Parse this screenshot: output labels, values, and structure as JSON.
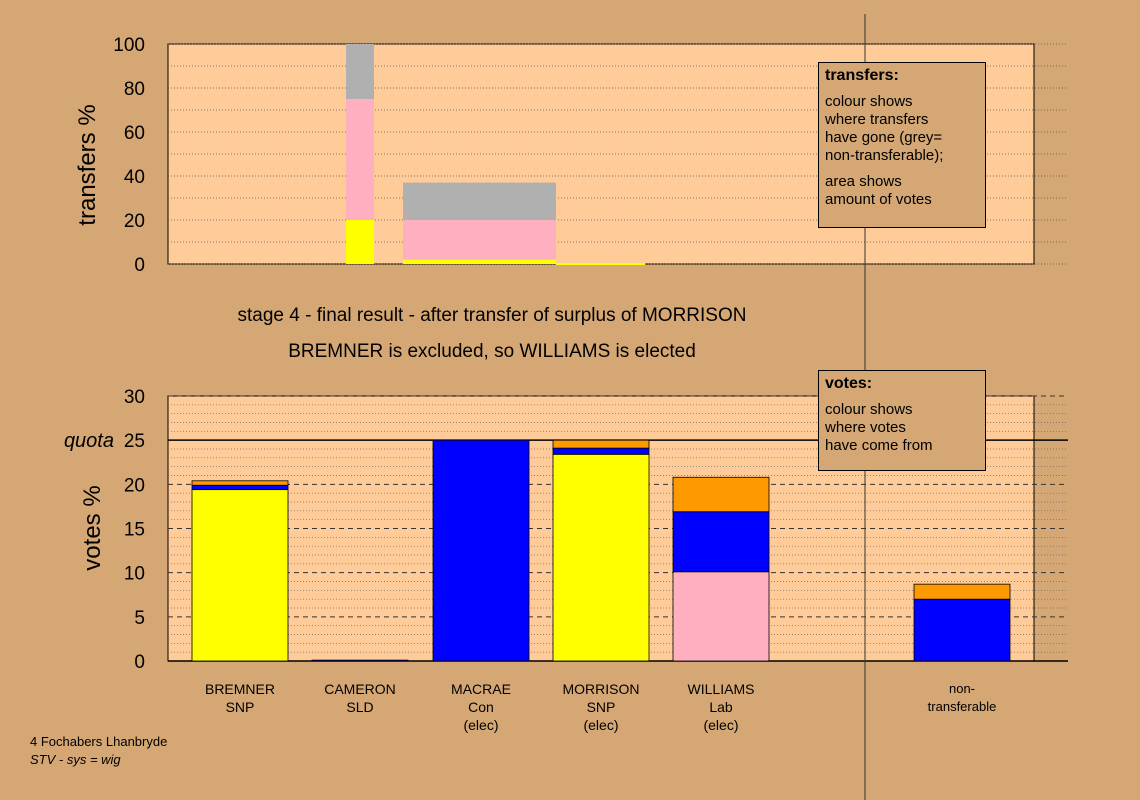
{
  "mid_title": {
    "line1": "stage 4 - final result - after transfer of surplus of MORRISON",
    "line2": "BREMNER is excluded, so WILLIAMS is elected"
  },
  "legend_transfers": {
    "heading": "transfers:",
    "lines": [
      "colour shows",
      "where transfers",
      "have gone (grey=",
      "non-transferable);"
    ],
    "lines2": [
      "area shows",
      "amount of votes"
    ]
  },
  "legend_votes": {
    "heading": "votes:",
    "lines": [
      "colour shows",
      "where votes",
      "have come from"
    ]
  },
  "candidates": [
    {
      "name": "BREMNER",
      "party": "SNP",
      "status": ""
    },
    {
      "name": "CAMERON",
      "party": "SLD",
      "status": ""
    },
    {
      "name": "MACRAE",
      "party": "Con",
      "status": "(elec)"
    },
    {
      "name": "MORRISON",
      "party": "SNP",
      "status": "(elec)"
    },
    {
      "name": "WILLIAMS",
      "party": "Lab",
      "status": "(elec)"
    },
    {
      "name": "non-",
      "party": "transferable",
      "status": ""
    }
  ],
  "footer": {
    "line1": "4 Fochabers Lhanbryde",
    "line2": "STV - sys = wig"
  },
  "colors": {
    "background": "#d4a774",
    "plot_bg": "#ffcc99",
    "yellow": "#ffff00",
    "blue": "#0000ff",
    "pink": "#ffb0c0",
    "orange": "#ff9900",
    "grey": "#b0b0b0"
  },
  "chart_data": [
    {
      "type": "bar",
      "stacked": true,
      "ylabel": "transfers %",
      "ylim": [
        0,
        100
      ],
      "yticks": [
        0,
        20,
        40,
        60,
        80,
        100
      ],
      "note": "bar width shows amount of votes transferred",
      "bars": [
        {
          "from": "MORRISON",
          "segments": [
            {
              "color": "yellow",
              "from": 0,
              "to": 20
            },
            {
              "color": "pink",
              "from": 20,
              "to": 75
            },
            {
              "color": "grey",
              "from": 75,
              "to": 100
            }
          ]
        },
        {
          "from": "BREMNER",
          "segments": [
            {
              "color": "yellow",
              "from": 0,
              "to": 2
            },
            {
              "color": "pink",
              "from": 2,
              "to": 20
            },
            {
              "color": "grey",
              "from": 20,
              "to": 37
            }
          ]
        }
      ]
    },
    {
      "type": "bar",
      "stacked": true,
      "ylabel": "votes %",
      "ylim": [
        0,
        30
      ],
      "yticks": [
        0,
        5,
        10,
        15,
        20,
        25,
        30
      ],
      "quota": 25,
      "quota_label": "quota",
      "categories": [
        "BREMNER SNP",
        "CAMERON SLD",
        "MACRAE Con (elec)",
        "MORRISON SNP (elec)",
        "WILLIAMS Lab (elec)",
        "non-transferable"
      ],
      "stacks": [
        [
          {
            "color": "yellow",
            "value": 19.4
          },
          {
            "color": "blue",
            "value": 0.5
          },
          {
            "color": "orange",
            "value": 0.5
          }
        ],
        [
          {
            "color": "blue",
            "value": 0.1
          }
        ],
        [
          {
            "color": "blue",
            "value": 25.0
          }
        ],
        [
          {
            "color": "yellow",
            "value": 23.4
          },
          {
            "color": "blue",
            "value": 0.7
          },
          {
            "color": "orange",
            "value": 0.9
          }
        ],
        [
          {
            "color": "pink",
            "value": 10.1
          },
          {
            "color": "blue",
            "value": 6.8
          },
          {
            "color": "orange",
            "value": 3.9
          }
        ],
        [
          {
            "color": "blue",
            "value": 7.0
          },
          {
            "color": "orange",
            "value": 1.7
          }
        ]
      ]
    }
  ]
}
